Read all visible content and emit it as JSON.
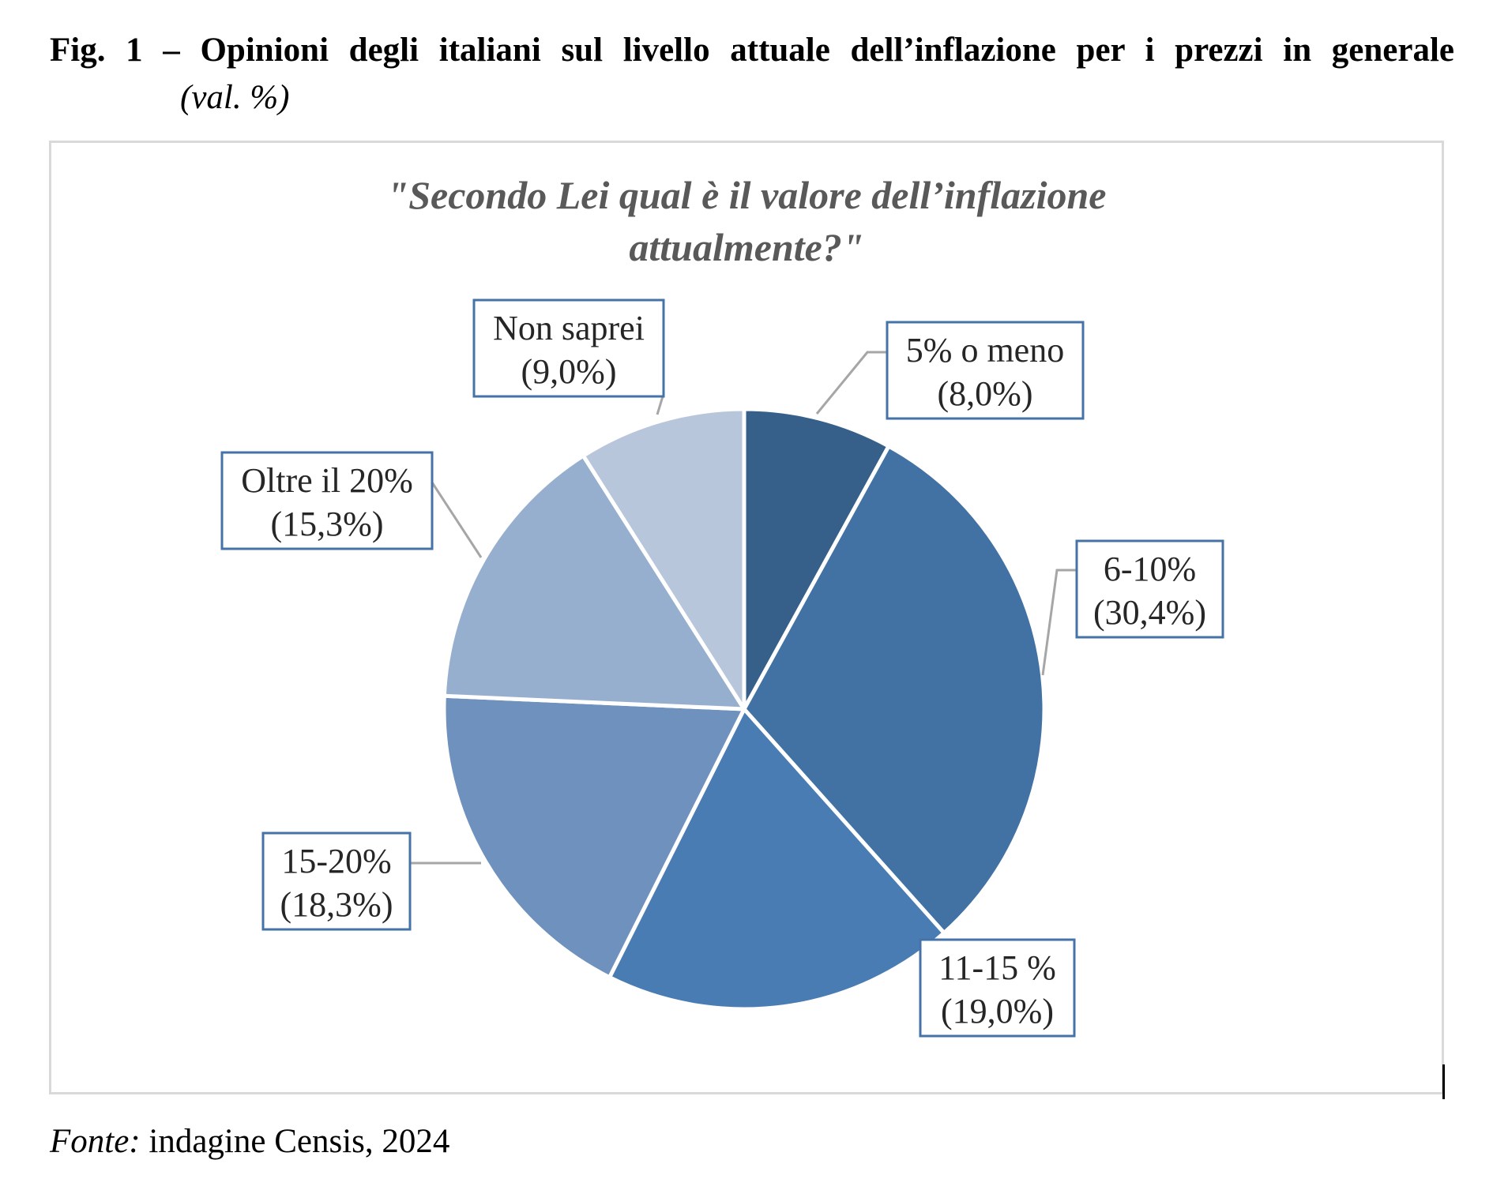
{
  "figure": {
    "title": "Fig. 1 – Opinioni degli italiani sul livello attuale dell’inflazione per i prezzi in generale",
    "subtitle": "(val. %)"
  },
  "source": {
    "label": "Fonte:",
    "text": " indagine Censis, 2024"
  },
  "chart_data": {
    "type": "pie",
    "title_lines": [
      "\"Secondo Lei qual è il valore dell’inflazione",
      "attualmente?\""
    ],
    "unit": "%",
    "start": "12 o'clock, clockwise",
    "slices": [
      {
        "name": "5% o meno",
        "value": 8.0,
        "value_label": "(8,0%)",
        "color": "#366089"
      },
      {
        "name": "6-10%",
        "value": 30.4,
        "value_label": "(30,4%)",
        "color": "#4272a4"
      },
      {
        "name": "11-15 %",
        "value": 19.0,
        "value_label": "(19,0%)",
        "color": "#4a7cb4"
      },
      {
        "name": "15-20%",
        "value": 18.3,
        "value_label": "(18,3%)",
        "color": "#6f91be"
      },
      {
        "name": "Oltre il 20%",
        "value": 15.3,
        "value_label": "(15,3%)",
        "color": "#97afce"
      },
      {
        "name": "Non saprei",
        "value": 9.0,
        "value_label": "(9,0%)",
        "color": "#b8c6dc"
      }
    ],
    "label_border_color": "#4573a8",
    "slice_separator_color": "#ffffff"
  }
}
